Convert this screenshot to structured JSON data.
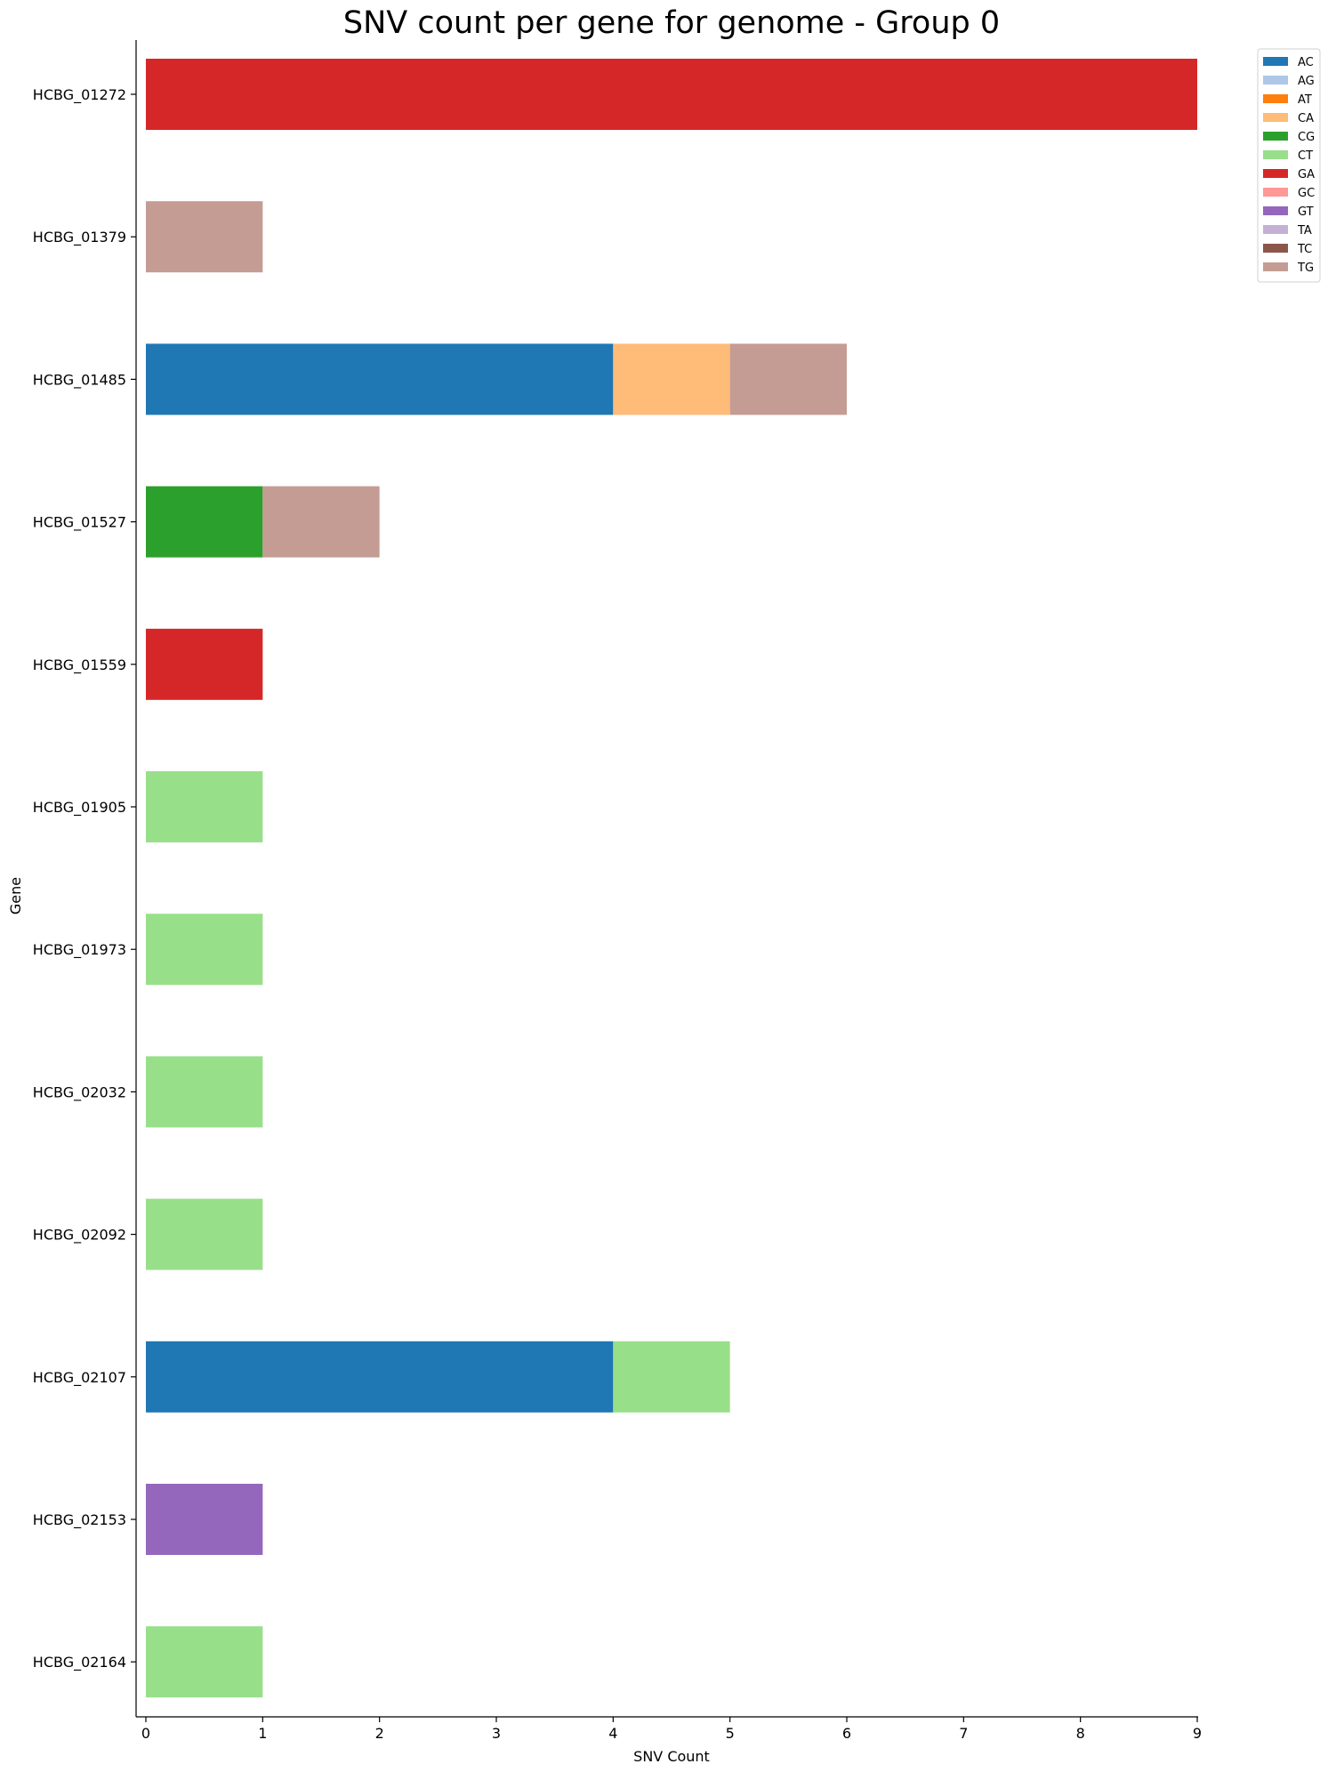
{
  "chart_data": {
    "type": "bar",
    "orientation": "horizontal",
    "stacked": true,
    "title": "SNV count per gene for genome - Group 0",
    "xlabel": "SNV Count",
    "ylabel": "Gene",
    "xlim": [
      0,
      9
    ],
    "x_ticks": [
      "0",
      "1",
      "2",
      "3",
      "4",
      "5",
      "6",
      "7",
      "8",
      "9"
    ],
    "categories": [
      "HCBG_01272",
      "HCBG_01379",
      "HCBG_01485",
      "HCBG_01527",
      "HCBG_01559",
      "HCBG_01905",
      "HCBG_01973",
      "HCBG_02032",
      "HCBG_02092",
      "HCBG_02107",
      "HCBG_02153",
      "HCBG_02164"
    ],
    "series": [
      {
        "name": "AC",
        "color": "#1f77b4",
        "values": [
          0,
          0,
          4,
          0,
          0,
          0,
          0,
          0,
          0,
          4,
          0,
          0
        ]
      },
      {
        "name": "AG",
        "color": "#aec7e8",
        "values": [
          0,
          0,
          0,
          0,
          0,
          0,
          0,
          0,
          0,
          0,
          0,
          0
        ]
      },
      {
        "name": "AT",
        "color": "#ff7f0e",
        "values": [
          0,
          0,
          0,
          0,
          0,
          0,
          0,
          0,
          0,
          0,
          0,
          0
        ]
      },
      {
        "name": "CA",
        "color": "#ffbb78",
        "values": [
          0,
          0,
          1,
          0,
          0,
          0,
          0,
          0,
          0,
          0,
          0,
          0
        ]
      },
      {
        "name": "CG",
        "color": "#2ca02c",
        "values": [
          0,
          0,
          0,
          1,
          0,
          0,
          0,
          0,
          0,
          0,
          0,
          0
        ]
      },
      {
        "name": "CT",
        "color": "#98df8a",
        "values": [
          0,
          0,
          0,
          0,
          0,
          1,
          1,
          1,
          1,
          1,
          0,
          1
        ]
      },
      {
        "name": "GA",
        "color": "#d62728",
        "values": [
          9,
          0,
          0,
          0,
          1,
          0,
          0,
          0,
          0,
          0,
          0,
          0
        ]
      },
      {
        "name": "GC",
        "color": "#ff9896",
        "values": [
          0,
          0,
          0,
          0,
          0,
          0,
          0,
          0,
          0,
          0,
          0,
          0
        ]
      },
      {
        "name": "GT",
        "color": "#9467bd",
        "values": [
          0,
          0,
          0,
          0,
          0,
          0,
          0,
          0,
          0,
          0,
          1,
          0
        ]
      },
      {
        "name": "TA",
        "color": "#c5b0d5",
        "values": [
          0,
          0,
          0,
          0,
          0,
          0,
          0,
          0,
          0,
          0,
          0,
          0
        ]
      },
      {
        "name": "TC",
        "color": "#8c564b",
        "values": [
          0,
          0,
          0,
          0,
          0,
          0,
          0,
          0,
          0,
          0,
          0,
          0
        ]
      },
      {
        "name": "TG",
        "color": "#c49c94",
        "values": [
          0,
          1,
          1,
          1,
          0,
          0,
          0,
          0,
          0,
          0,
          0,
          0
        ]
      }
    ],
    "legend_position": "top-right, outside plot",
    "grid": false
  }
}
